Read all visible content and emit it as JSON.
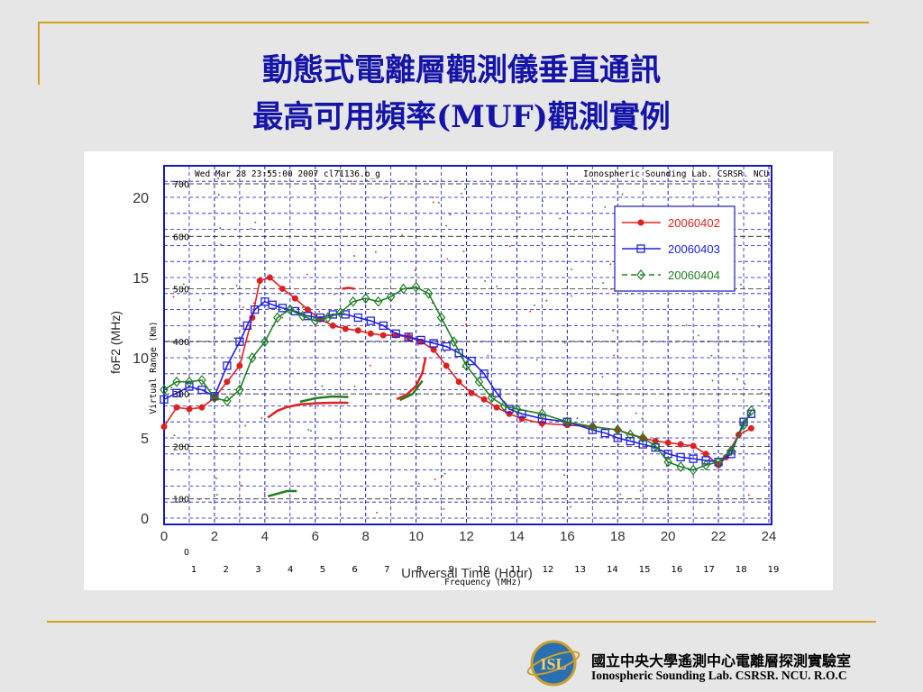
{
  "slide": {
    "title_line1": "動態式電離層觀測儀垂直通訊",
    "title_line2": "最高可用頻率(MUF)觀測實例",
    "footer_cn": "國立中央大學遙測中心電離層探測實驗室",
    "footer_en": "Ionospheric Sounding Lab. CSRSR.  NCU. R.O.C",
    "logo_text": "ISL"
  },
  "colors": {
    "title": "#1414a8",
    "rule": "#d4a020",
    "grid": "#1a1ab4",
    "series_red": "#e02020",
    "series_blue": "#2020e0",
    "series_green": "#208020"
  },
  "chart_data": {
    "type": "line",
    "header_left": "Wed Mar 28 23:55:00 2007  cl71136.b_g",
    "header_right": "Ionospheric Sounding Lab. CSRSR. NCU",
    "xlabel": "Universal Time (Hour)",
    "ylabel": "foF2 (MHz)",
    "xlim": [
      0,
      24
    ],
    "ylim": [
      0,
      22
    ],
    "x_ticks": [
      "0",
      "2",
      "4",
      "6",
      "8",
      "10",
      "12",
      "14",
      "16",
      "18",
      "20",
      "22",
      "24"
    ],
    "y_ticks": [
      "0",
      "5",
      "10",
      "15",
      "20"
    ],
    "ionogram": {
      "xlabel": "Frequency (MHz)",
      "ylabel": "Virtual Range (Km)",
      "x_ticks": [
        "1",
        "2",
        "3",
        "4",
        "5",
        "6",
        "7",
        "8",
        "9",
        "10",
        "11",
        "12",
        "13",
        "14",
        "15",
        "16",
        "17",
        "18",
        "19"
      ],
      "y_ticks": [
        "0",
        "100",
        "200",
        "300",
        "400",
        "500",
        "600",
        "700"
      ],
      "xlim": [
        1,
        19
      ],
      "ylim": [
        0,
        700
      ],
      "traces": [
        {
          "color": "green",
          "points": [
            [
              3.3,
              105
            ],
            [
              3.6,
              110
            ],
            [
              3.9,
              115
            ],
            [
              4.2,
              115
            ]
          ]
        },
        {
          "color": "red",
          "points": [
            [
              3.3,
              255
            ],
            [
              3.6,
              268
            ],
            [
              3.9,
              275
            ],
            [
              4.3,
              280
            ],
            [
              4.8,
              282
            ],
            [
              5.3,
              283
            ],
            [
              5.8,
              283
            ]
          ]
        },
        {
          "color": "green",
          "points": [
            [
              4.3,
              285
            ],
            [
              4.8,
              292
            ],
            [
              5.3,
              295
            ],
            [
              5.8,
              294
            ]
          ]
        },
        {
          "color": "red",
          "points": [
            [
              7.3,
              290
            ],
            [
              7.6,
              298
            ],
            [
              7.9,
              315
            ],
            [
              8.1,
              340
            ],
            [
              8.2,
              370
            ]
          ]
        },
        {
          "color": "green",
          "points": [
            [
              7.4,
              288
            ],
            [
              7.8,
              300
            ],
            [
              8.1,
              325
            ]
          ]
        },
        {
          "color": "red",
          "points": [
            [
              5.6,
              500
            ],
            [
              5.8,
              502
            ],
            [
              6.0,
              500
            ]
          ]
        }
      ]
    },
    "legend": {
      "position": "top-right"
    },
    "series": [
      {
        "name": "20060402",
        "color": "#e02020",
        "marker": "circle",
        "x": [
          0,
          0.5,
          1,
          1.5,
          2,
          2.5,
          3,
          3.5,
          3.8,
          4.2,
          4.7,
          5.2,
          5.7,
          6.2,
          6.7,
          7.2,
          7.7,
          8.2,
          8.7,
          9.2,
          9.7,
          10.2,
          10.7,
          11.2,
          11.7,
          12.2,
          12.7,
          13.2,
          13.7,
          14.2,
          15,
          16,
          17,
          18,
          19,
          19.5,
          20,
          20.5,
          21,
          21.5,
          22,
          22.3,
          22.8,
          23.3
        ],
        "y": [
          5.7,
          6.9,
          6.8,
          6.9,
          7.5,
          8.5,
          9.5,
          12.5,
          14.8,
          15.0,
          14.3,
          13.7,
          13.0,
          12.4,
          12.0,
          11.8,
          11.7,
          11.5,
          11.4,
          11.4,
          11.3,
          11.0,
          10.5,
          9.5,
          8.5,
          7.8,
          7.4,
          6.9,
          6.5,
          6.2,
          5.9,
          5.8,
          5.7,
          5.5,
          5.0,
          4.8,
          4.7,
          4.6,
          4.5,
          4.0,
          3.3,
          3.8,
          5.2,
          5.6
        ]
      },
      {
        "name": "20060403",
        "color": "#2020e0",
        "marker": "square",
        "x": [
          0,
          0.5,
          1,
          1.5,
          2,
          2.5,
          3,
          3.3,
          3.6,
          4,
          4.3,
          4.7,
          5.2,
          5.7,
          6.2,
          6.7,
          7.2,
          7.7,
          8.2,
          8.7,
          9.2,
          9.7,
          10.2,
          10.7,
          11.2,
          11.7,
          12.2,
          12.7,
          13.2,
          13.7,
          14.2,
          15,
          16,
          17,
          17.5,
          18,
          18.5,
          19,
          19.5,
          20,
          20.5,
          21,
          21.5,
          22,
          22.5,
          23,
          23.3
        ],
        "y": [
          7.4,
          7.8,
          8.2,
          8.0,
          7.6,
          9.5,
          11.0,
          12.0,
          13.0,
          13.5,
          13.3,
          13.1,
          12.9,
          12.6,
          12.5,
          12.7,
          12.7,
          12.5,
          12.3,
          12.0,
          11.5,
          11.3,
          11.1,
          10.9,
          10.7,
          10.3,
          9.8,
          9.0,
          7.8,
          6.8,
          6.5,
          6.2,
          6.0,
          5.5,
          5.3,
          5.0,
          4.8,
          4.6,
          4.4,
          4.0,
          3.8,
          3.7,
          3.6,
          3.5,
          4.0,
          6.0,
          6.5
        ]
      },
      {
        "name": "20060404",
        "color": "#208020",
        "marker": "diamond",
        "x": [
          0,
          0.5,
          1,
          1.5,
          2,
          2.5,
          3,
          3.5,
          4,
          4.5,
          5,
          5.5,
          6,
          6.5,
          7,
          7.5,
          8,
          8.5,
          9,
          9.5,
          10,
          10.5,
          11,
          11.5,
          12,
          12.5,
          13,
          13.5,
          14,
          15,
          16,
          17,
          18,
          18.5,
          19,
          19.5,
          20,
          20.5,
          21,
          21.5,
          22,
          22.5,
          23,
          23.3
        ],
        "y": [
          8.0,
          8.5,
          8.5,
          8.6,
          7.5,
          7.3,
          8.0,
          10.0,
          11.0,
          12.5,
          13.0,
          12.6,
          12.3,
          12.5,
          12.8,
          13.5,
          13.7,
          13.5,
          13.8,
          14.3,
          14.4,
          14.0,
          12.5,
          11.0,
          9.5,
          8.5,
          7.5,
          7.0,
          6.8,
          6.5,
          6.0,
          5.7,
          5.5,
          5.2,
          5.0,
          4.5,
          3.5,
          3.2,
          3.0,
          3.3,
          3.5,
          4.2,
          5.8,
          6.7
        ]
      }
    ]
  }
}
